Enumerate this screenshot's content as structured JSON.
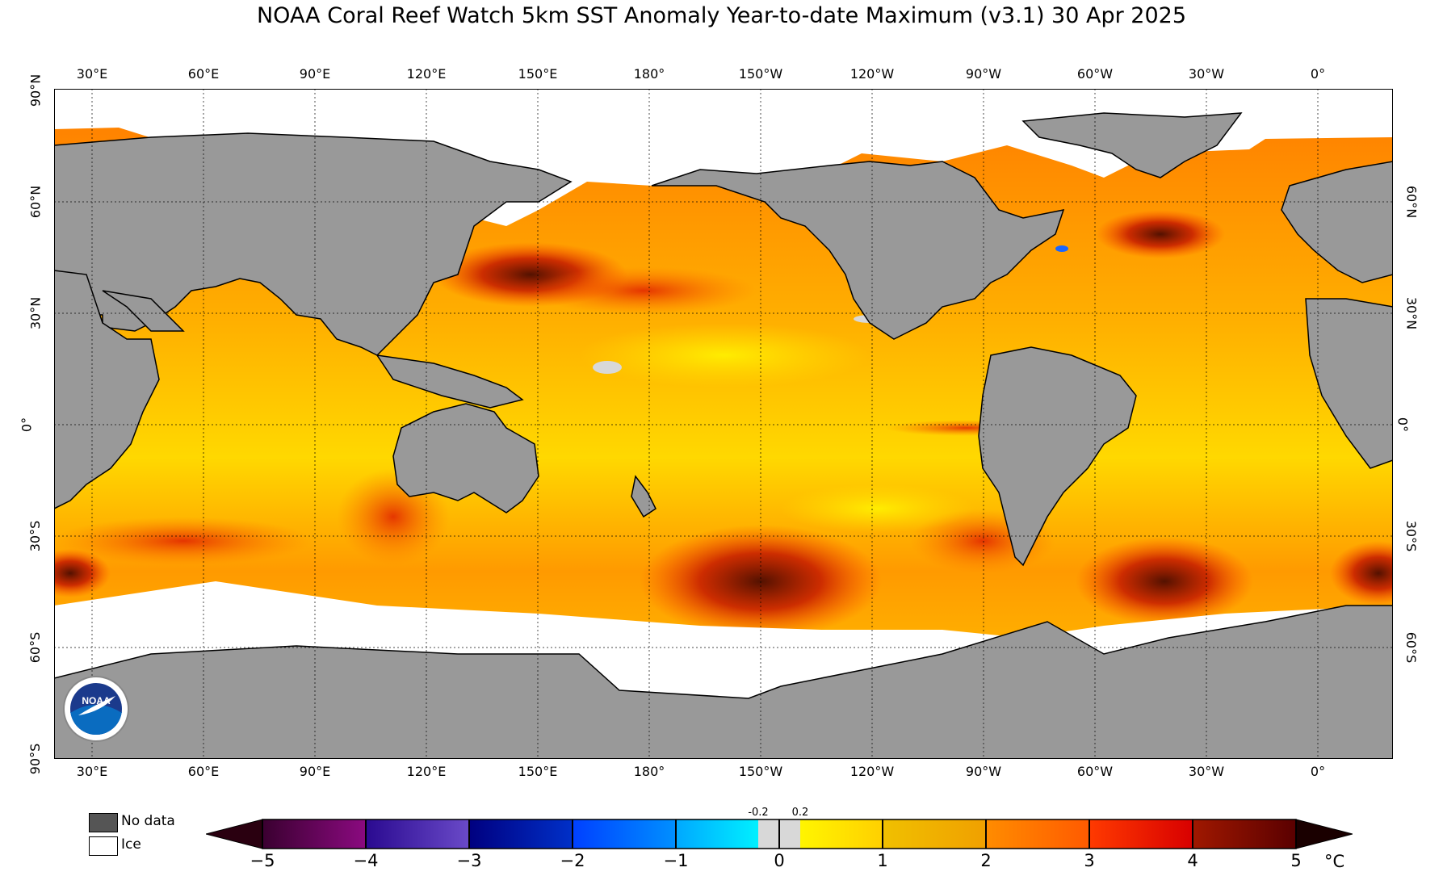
{
  "title": "NOAA Coral Reef Watch 5km SST Anomaly Year-to-date Maximum  (v3.1)   30 Apr 2025",
  "map": {
    "longitude_ticks": [
      "30°E",
      "60°E",
      "90°E",
      "120°E",
      "150°E",
      "180°",
      "150°W",
      "120°W",
      "90°W",
      "60°W",
      "30°W",
      "0°"
    ],
    "latitude_ticks_left": [
      "90°N",
      "60°N",
      "30°N",
      "0°",
      "30°S",
      "60°S",
      "90°S"
    ],
    "latitude_ticks_right": [
      "60°N",
      "30°N",
      "0°",
      "30°S",
      "60°S"
    ],
    "land_color": "#999999",
    "ice_color": "#ffffff",
    "logo_text": "NOAA"
  },
  "legend": {
    "no_data_label": "No data",
    "no_data_color": "#555555",
    "ice_label": "Ice",
    "ice_color": "#ffffff"
  },
  "colorbar": {
    "ticks": [
      "−5",
      "−4",
      "−3",
      "−2",
      "−1",
      "0",
      "1",
      "2",
      "3",
      "4",
      "5"
    ],
    "small_ticks": [
      "-0.2",
      "0.2"
    ],
    "unit": "°C",
    "colors": [
      "#2a0010",
      "#8b0a6e",
      "#4b2bb5",
      "#0a1aa0",
      "#0050ff",
      "#00c8ff",
      "#d8d8d8",
      "#ffe600",
      "#f0a800",
      "#ff6a00",
      "#e00000",
      "#5a0000"
    ]
  }
}
